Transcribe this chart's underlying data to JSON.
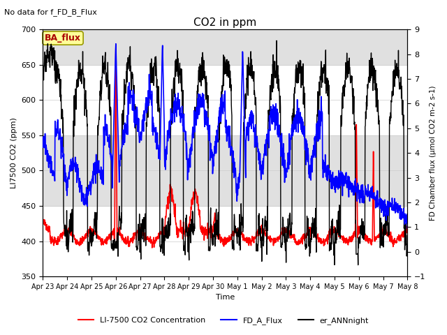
{
  "title": "CO2 in ppm",
  "top_left_text": "No data for f_FD_B_Flux",
  "xlabel": "Time",
  "ylabel_left": "LI7500 CO2 (ppm)",
  "ylabel_right": "FD Chamber flux (μmol CO2 m-2 s-1)",
  "ylim_left": [
    350,
    700
  ],
  "ylim_right": [
    -1.0,
    9.0
  ],
  "yticks_left": [
    350,
    400,
    450,
    500,
    550,
    600,
    650,
    700
  ],
  "yticks_right": [
    -1.0,
    0.0,
    1.0,
    2.0,
    3.0,
    4.0,
    5.0,
    6.0,
    7.0,
    8.0,
    9.0
  ],
  "xtick_labels": [
    "Apr 23",
    "Apr 24",
    "Apr 25",
    "Apr 26",
    "Apr 27",
    "Apr 28",
    "Apr 29",
    "Apr 30",
    "May 1",
    "May 2",
    "May 3",
    "May 4",
    "May 5",
    "May 6",
    "May 7",
    "May 8"
  ],
  "legend_entries": [
    {
      "label": "LI-7500 CO2 Concentration",
      "color": "#ff0000",
      "lw": 1.2
    },
    {
      "label": "FD_A_Flux",
      "color": "#0000ff",
      "lw": 1.2
    },
    {
      "label": "er_ANNnight",
      "color": "#000000",
      "lw": 1.0
    }
  ],
  "ba_flux_text": "BA_flux",
  "ba_flux_color": "#aa0000",
  "ba_flux_bg": "#ffff99",
  "ba_flux_edge": "#999900",
  "band_color": "#e0e0e0",
  "background_color": "#ffffff"
}
